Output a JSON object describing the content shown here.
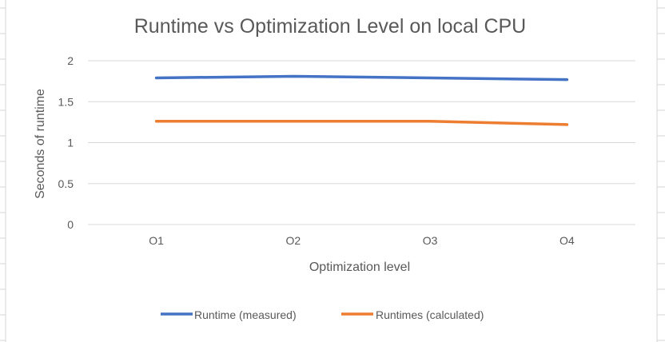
{
  "chart_data": {
    "type": "line",
    "title": "Runtime vs Optimization Level on local CPU",
    "xlabel": "Optimization level",
    "ylabel": "Seconds of runtime",
    "categories": [
      "O1",
      "O2",
      "O3",
      "O4"
    ],
    "ylim": [
      0,
      2
    ],
    "yticks": [
      "0",
      "0.5",
      "1",
      "1.5",
      "2"
    ],
    "grid": true,
    "legend_position": "bottom",
    "series": [
      {
        "name": "Runtime (measured)",
        "values": [
          1.79,
          1.81,
          1.79,
          1.77
        ],
        "color": "#4472C4"
      },
      {
        "name": "Runtimes (calculated)",
        "values": [
          1.26,
          1.26,
          1.26,
          1.22
        ],
        "color": "#ED7D31"
      }
    ]
  },
  "colors": {
    "text": "#595959",
    "gridline": "#D9D9D9",
    "sheet_grid": "#D6D6D6"
  }
}
